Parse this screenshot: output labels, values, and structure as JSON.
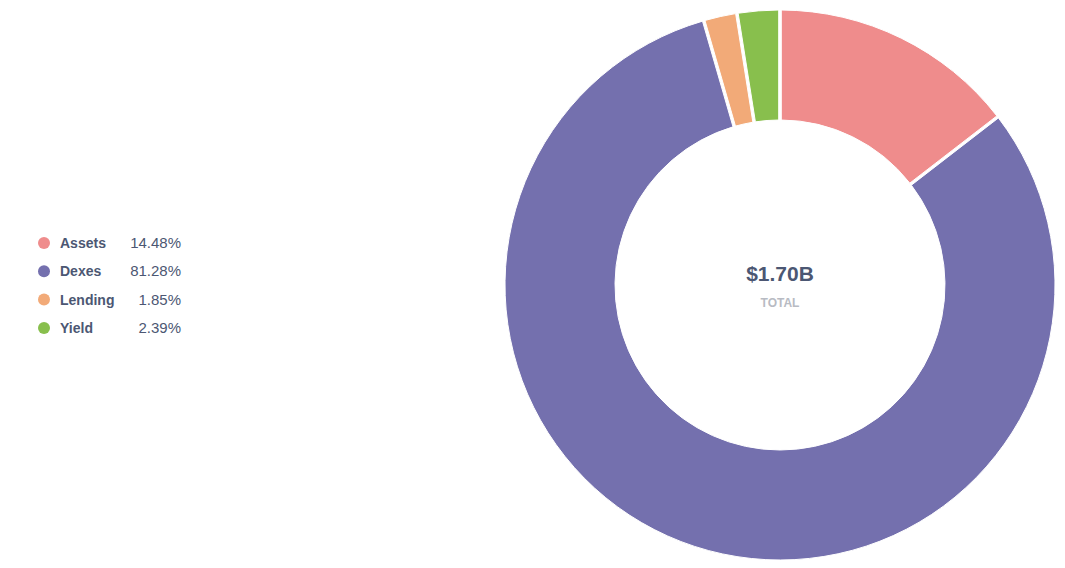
{
  "chart_data": {
    "type": "pie",
    "categories": [
      "Assets",
      "Dexes",
      "Lending",
      "Yield"
    ],
    "values": [
      14.48,
      81.28,
      1.85,
      2.39
    ],
    "value_labels": [
      "14.48%",
      "81.28%",
      "1.85%",
      "2.39%"
    ],
    "colors": [
      "#ef8c8c",
      "#7470ae",
      "#f2aa78",
      "#88bf4d"
    ],
    "total": "$1.70B",
    "total_caption": "TOTAL",
    "legend": "left"
  }
}
